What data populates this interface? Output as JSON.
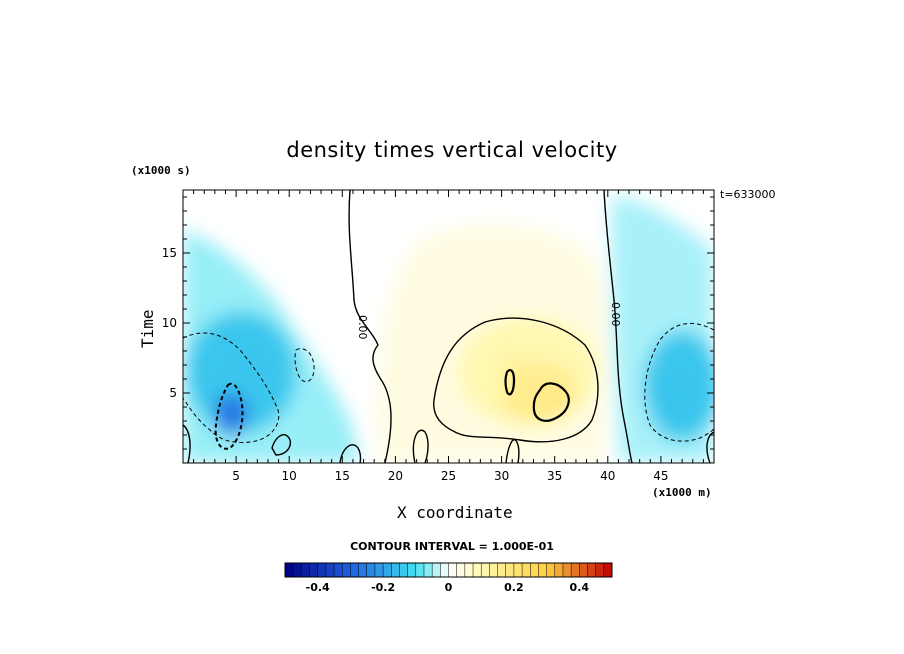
{
  "chart_data": {
    "type": "heatmap",
    "title": "density times vertical velocity",
    "xlabel": "X coordinate",
    "ylabel": "Time",
    "x_unit": "(x1000 m)",
    "y_unit": "(x1000 s)",
    "timestamp": "t=633000",
    "contour_interval_text": "CONTOUR INTERVAL = 1.000E-01",
    "xlim": [
      0,
      50
    ],
    "ylim": [
      0,
      19.5
    ],
    "x_ticks": [
      5,
      10,
      15,
      20,
      25,
      30,
      35,
      40,
      45
    ],
    "y_ticks": [
      5,
      10,
      15
    ],
    "contour_label": "0.00",
    "colorbar": {
      "min": -0.5,
      "max": 0.5,
      "step": 0.025,
      "ticks": [
        -0.4,
        -0.2,
        0,
        0.2,
        0.4
      ],
      "tick_labels": [
        "-0.4",
        "-0.2",
        "0",
        "0.2",
        "0.4"
      ]
    },
    "regions": [
      {
        "x": 6,
        "y": 7,
        "value": -0.15
      },
      {
        "x": 5,
        "y": 3.5,
        "value": -0.3
      },
      {
        "x": 47,
        "y": 5,
        "value": -0.15
      },
      {
        "x": 31,
        "y": 7,
        "value": 0.15
      },
      {
        "x": 35,
        "y": 4.5,
        "value": 0.2
      }
    ]
  },
  "colors": {
    "neg_deep": "#000080",
    "neg_mid": "#2060e0",
    "neg_light": "#40e0f0",
    "zero": "#ffffff",
    "pos_light": "#fff8b0",
    "pos_mid": "#ffd040",
    "pos_deep": "#c00000"
  }
}
